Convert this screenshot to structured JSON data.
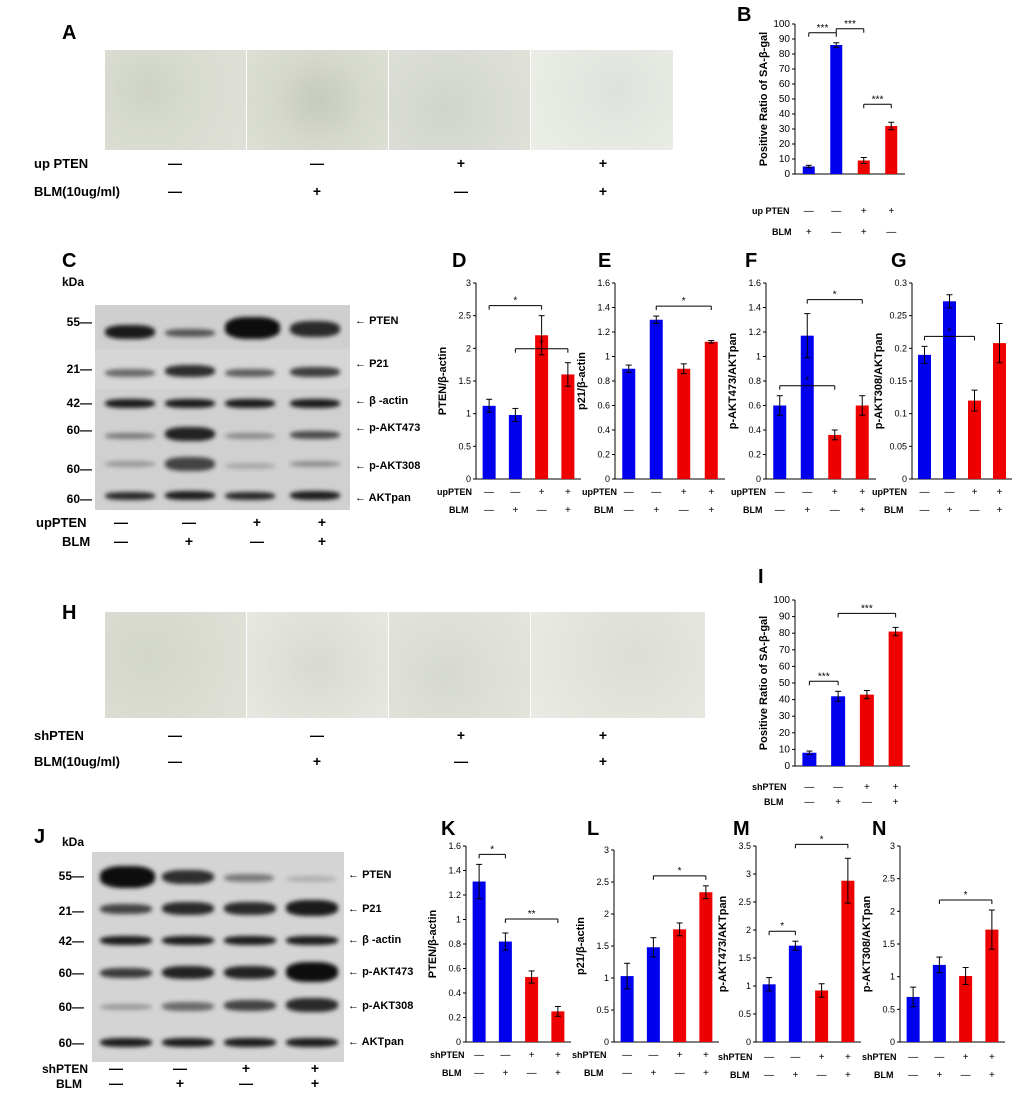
{
  "panels": {
    "A": "A",
    "B": "B",
    "C": "C",
    "D": "D",
    "E": "E",
    "F": "F",
    "G": "G",
    "H": "H",
    "I": "I",
    "J": "J",
    "K": "K",
    "L": "L",
    "M": "M",
    "N": "N"
  },
  "microscopy_top": {
    "row1_label": "up PTEN",
    "row2_label": "BLM(10ug/ml)",
    "row1_signs": [
      "—",
      "—",
      "+",
      "+"
    ],
    "row2_signs": [
      "—",
      "+",
      "—",
      "+"
    ]
  },
  "microscopy_bottom": {
    "row1_label": "shPTEN",
    "row2_label": "BLM(10ug/ml)",
    "row1_signs": [
      "—",
      "—",
      "+",
      "+"
    ],
    "row2_signs": [
      "—",
      "+",
      "—",
      "+"
    ]
  },
  "blot_C": {
    "kda_label": "kDa",
    "kda": [
      "55—",
      "21—",
      "42—",
      "60—",
      "60—",
      "60—"
    ],
    "proteins": [
      "PTEN",
      "P21",
      "β -actin",
      "p-AKT473",
      "p-AKT308",
      "AKTpan"
    ],
    "row1_label": "upPTEN",
    "row2_label": "BLM",
    "row1_signs": [
      "—",
      "—",
      "+",
      "+"
    ],
    "row2_signs": [
      "—",
      "+",
      "—",
      "+"
    ]
  },
  "blot_J": {
    "kda_label": "kDa",
    "kda": [
      "55—",
      "21—",
      "42—",
      "60—",
      "60—",
      "60—"
    ],
    "proteins": [
      "PTEN",
      "P21",
      "β -actin",
      "p-AKT473",
      "p-AKT308",
      "AKTpan"
    ],
    "row1_label": "shPTEN",
    "row2_label": "BLM",
    "row1_signs": [
      "—",
      "—",
      "+",
      "+"
    ],
    "row2_signs": [
      "—",
      "+",
      "—",
      "+"
    ]
  },
  "colors": {
    "blue": "#0000ee",
    "red": "#ee0000"
  },
  "chart_data": [
    {
      "id": "B",
      "type": "bar",
      "ylabel": "Positive Ratio of SA-β-gal",
      "ylim": [
        0,
        100
      ],
      "yticks": [
        0,
        10,
        20,
        30,
        40,
        50,
        60,
        70,
        80,
        90,
        100
      ],
      "values": [
        5,
        86,
        9,
        32
      ],
      "errors": [
        0.8,
        1.5,
        2,
        2.5
      ],
      "colors": [
        "blue",
        "blue",
        "red",
        "red"
      ],
      "row1_label": "up PTEN",
      "row2_label": "BLM",
      "row1_signs": [
        "—",
        "—",
        "+",
        "+"
      ],
      "row2_signs": [
        "+",
        "—",
        "+",
        "—"
      ],
      "sig": [
        {
          "from": 0,
          "to": 1,
          "label": "***"
        },
        {
          "from": 1,
          "to": 2,
          "label": "***"
        },
        {
          "from": 2,
          "to": 3,
          "label": "***"
        }
      ]
    },
    {
      "id": "D",
      "type": "bar",
      "ylabel": "PTEN/β-actin",
      "ylim": [
        0,
        3
      ],
      "yticks": [
        0,
        0.5,
        1,
        1.5,
        2,
        2.5,
        3
      ],
      "ytick_labels": [
        "0",
        "0.5",
        "1",
        "1.5",
        "2",
        "2.5",
        "3"
      ],
      "values": [
        1.12,
        0.98,
        2.2,
        1.6
      ],
      "errors": [
        0.1,
        0.1,
        0.3,
        0.18
      ],
      "colors": [
        "blue",
        "blue",
        "red",
        "red"
      ],
      "row1_label": "upPTEN",
      "row2_label": "BLM",
      "row1_signs": [
        "—",
        "—",
        "+",
        "+"
      ],
      "row2_signs": [
        "—",
        "+",
        "—",
        "+"
      ],
      "sig": [
        {
          "from": 0,
          "to": 2,
          "label": "*"
        },
        {
          "from": 1,
          "to": 3,
          "label": "*"
        }
      ]
    },
    {
      "id": "E",
      "type": "bar",
      "ylabel": "p21/β-actin",
      "ylim": [
        0,
        1.6
      ],
      "yticks": [
        0,
        0.2,
        0.4,
        0.6,
        0.8,
        1,
        1.2,
        1.4,
        1.6
      ],
      "ytick_labels": [
        "0",
        "0.2",
        "0.4",
        "0.6",
        "0.8",
        "1",
        "1.2",
        "1.4",
        "1.6"
      ],
      "values": [
        0.9,
        1.3,
        0.9,
        1.12
      ],
      "errors": [
        0.03,
        0.03,
        0.04,
        0.01
      ],
      "colors": [
        "blue",
        "blue",
        "red",
        "red"
      ],
      "row1_label": "upPTEN",
      "row2_label": "BLM",
      "row1_signs": [
        "—",
        "—",
        "+",
        "+"
      ],
      "row2_signs": [
        "—",
        "+",
        "—",
        "+"
      ],
      "sig": [
        {
          "from": 1,
          "to": 3,
          "label": "*"
        }
      ]
    },
    {
      "id": "F",
      "type": "bar",
      "ylabel": "p-AKT473/AKTpan",
      "ylim": [
        0,
        1.6
      ],
      "yticks": [
        0,
        0.2,
        0.4,
        0.6,
        0.8,
        1,
        1.2,
        1.4,
        1.6
      ],
      "ytick_labels": [
        "0",
        "0.2",
        "0.4",
        "0.6",
        "0.8",
        "1",
        "1.2",
        "1.4",
        "1.6"
      ],
      "values": [
        0.6,
        1.17,
        0.36,
        0.6
      ],
      "errors": [
        0.08,
        0.18,
        0.04,
        0.08
      ],
      "colors": [
        "blue",
        "blue",
        "red",
        "red"
      ],
      "row1_label": "upPTEN",
      "row2_label": "BLM",
      "row1_signs": [
        "—",
        "—",
        "+",
        "+"
      ],
      "row2_signs": [
        "—",
        "+",
        "—",
        "+"
      ],
      "sig": [
        {
          "from": 0,
          "to": 2,
          "label": "*"
        },
        {
          "from": 1,
          "to": 3,
          "label": "*"
        }
      ]
    },
    {
      "id": "G",
      "type": "bar",
      "ylabel": "p-AKT308/AKTpan",
      "ylim": [
        0,
        0.3
      ],
      "yticks": [
        0,
        0.05,
        0.1,
        0.15,
        0.2,
        0.25,
        0.3
      ],
      "ytick_labels": [
        "0",
        "0.05",
        "0.1",
        "0.15",
        "0.2",
        "0.25",
        "0.3"
      ],
      "values": [
        0.19,
        0.272,
        0.12,
        0.208
      ],
      "errors": [
        0.013,
        0.01,
        0.016,
        0.03
      ],
      "colors": [
        "blue",
        "blue",
        "red",
        "red"
      ],
      "row1_label": "upPTEN",
      "row2_label": "BLM",
      "row1_signs": [
        "—",
        "—",
        "+",
        "+"
      ],
      "row2_signs": [
        "—",
        "+",
        "—",
        "+"
      ],
      "sig": [
        {
          "from": 0,
          "to": 2,
          "label": "*"
        }
      ]
    },
    {
      "id": "I",
      "type": "bar",
      "ylabel": "Positive Ratio of SA-β-gal",
      "ylim": [
        0,
        100
      ],
      "yticks": [
        0,
        10,
        20,
        30,
        40,
        50,
        60,
        70,
        80,
        90,
        100
      ],
      "values": [
        8,
        42,
        43,
        81
      ],
      "errors": [
        1,
        3,
        2.5,
        2.5
      ],
      "colors": [
        "blue",
        "blue",
        "red",
        "red"
      ],
      "row1_label": "shPTEN",
      "row2_label": "BLM",
      "row1_signs": [
        "—",
        "—",
        "+",
        "+"
      ],
      "row2_signs": [
        "—",
        "+",
        "—",
        "+"
      ],
      "sig": [
        {
          "from": 0,
          "to": 1,
          "label": "***"
        },
        {
          "from": 1,
          "to": 3,
          "label": "***"
        }
      ]
    },
    {
      "id": "K",
      "type": "bar",
      "ylabel": "PTEN/β-actin",
      "ylim": [
        0,
        1.6
      ],
      "yticks": [
        0,
        0.2,
        0.4,
        0.6,
        0.8,
        1,
        1.2,
        1.4,
        1.6
      ],
      "ytick_labels": [
        "0",
        "0.2",
        "0.4",
        "0.6",
        "0.8",
        "1",
        "1.2",
        "1.4",
        "1.6"
      ],
      "values": [
        1.31,
        0.82,
        0.53,
        0.25
      ],
      "errors": [
        0.14,
        0.07,
        0.05,
        0.04
      ],
      "colors": [
        "blue",
        "blue",
        "red",
        "red"
      ],
      "row1_label": "shPTEN",
      "row2_label": "BLM",
      "row1_signs": [
        "—",
        "—",
        "+",
        "+"
      ],
      "row2_signs": [
        "—",
        "+",
        "—",
        "+"
      ],
      "sig": [
        {
          "from": 0,
          "to": 1,
          "label": "*"
        },
        {
          "from": 1,
          "to": 3,
          "label": "**"
        }
      ]
    },
    {
      "id": "L",
      "type": "bar",
      "ylabel": "p21/β-actin",
      "ylim": [
        0,
        3
      ],
      "yticks": [
        0,
        0.5,
        1,
        1.5,
        2,
        2.5,
        3
      ],
      "ytick_labels": [
        "0",
        "0.5",
        "1",
        "1.5",
        "2",
        "2.5",
        "3"
      ],
      "values": [
        1.03,
        1.48,
        1.76,
        2.34
      ],
      "errors": [
        0.2,
        0.15,
        0.1,
        0.1
      ],
      "colors": [
        "blue",
        "blue",
        "red",
        "red"
      ],
      "row1_label": "shPTEN",
      "row2_label": "BLM",
      "row1_signs": [
        "—",
        "—",
        "+",
        "+"
      ],
      "row2_signs": [
        "—",
        "+",
        "—",
        "+"
      ],
      "sig": [
        {
          "from": 1,
          "to": 3,
          "label": "*"
        }
      ]
    },
    {
      "id": "M",
      "type": "bar",
      "ylabel": "p-AKT473/AKTpan",
      "ylim": [
        0,
        3.5
      ],
      "yticks": [
        0,
        0.5,
        1,
        1.5,
        2,
        2.5,
        3,
        3.5
      ],
      "ytick_labels": [
        "0",
        "0.5",
        "1",
        "1.5",
        "2",
        "2.5",
        "3",
        "3.5"
      ],
      "values": [
        1.03,
        1.72,
        0.92,
        2.88
      ],
      "errors": [
        0.12,
        0.08,
        0.12,
        0.4
      ],
      "colors": [
        "blue",
        "blue",
        "red",
        "red"
      ],
      "row1_label": "shPTEN",
      "row2_label": "BLM",
      "row1_signs": [
        "—",
        "—",
        "+",
        "+"
      ],
      "row2_signs": [
        "—",
        "+",
        "—",
        "+"
      ],
      "sig": [
        {
          "from": 0,
          "to": 1,
          "label": "*"
        },
        {
          "from": 1,
          "to": 3,
          "label": "*"
        }
      ]
    },
    {
      "id": "N",
      "type": "bar",
      "ylabel": "p-AKT308/AKTpan",
      "ylim": [
        0,
        3
      ],
      "yticks": [
        0,
        0.5,
        1,
        1.5,
        2,
        2.5,
        3
      ],
      "ytick_labels": [
        "0",
        "0.5",
        "1",
        "1.5",
        "2",
        "2.5",
        "3"
      ],
      "values": [
        0.69,
        1.18,
        1.01,
        1.72
      ],
      "errors": [
        0.15,
        0.12,
        0.13,
        0.3
      ],
      "colors": [
        "blue",
        "blue",
        "red",
        "red"
      ],
      "row1_label": "shPTEN",
      "row2_label": "BLM",
      "row1_signs": [
        "—",
        "—",
        "+",
        "+"
      ],
      "row2_signs": [
        "—",
        "+",
        "—",
        "+"
      ],
      "sig": [
        {
          "from": 1,
          "to": 3,
          "label": "*"
        }
      ]
    }
  ]
}
